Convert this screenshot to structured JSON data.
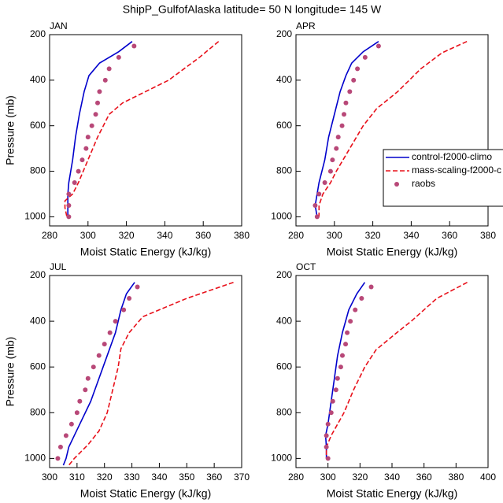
{
  "suptitle": "ShipP_GulfofAlaska  latitude= 50 N longitude= 145 W",
  "chart_data": [
    {
      "type": "line",
      "title": "JAN",
      "xlabel": "Moist Static Energy (kJ/kg)",
      "ylabel": "Pressure (mb)",
      "xlim": [
        280,
        380
      ],
      "xticks": [
        280,
        300,
        320,
        340,
        360,
        380
      ],
      "ylim": [
        1040,
        200
      ],
      "yticks": [
        200,
        400,
        600,
        800,
        1000
      ],
      "series": [
        {
          "color": "#0000cc",
          "style": "solid",
          "x": [
            323,
            316,
            306,
            300.5,
            298,
            295.5,
            293.5,
            292,
            290,
            289.5,
            289.5,
            289.5
          ],
          "y": [
            230,
            275,
            325,
            380,
            450,
            550,
            650,
            750,
            850,
            900,
            950,
            1000
          ]
        },
        {
          "color": "#e8101a",
          "style": "dashed",
          "x": [
            368,
            358,
            342,
            330,
            318,
            311,
            305,
            300,
            295,
            292,
            288,
            288,
            289
          ],
          "y": [
            230,
            300,
            400,
            450,
            500,
            550,
            650,
            750,
            850,
            900,
            930,
            960,
            1000
          ]
        },
        {
          "color": "#b84878",
          "style": "dots",
          "x": [
            324,
            316,
            311,
            309,
            306,
            305,
            304,
            302,
            300,
            299,
            297,
            295,
            293,
            290,
            290,
            290
          ],
          "y": [
            250,
            300,
            350,
            400,
            450,
            500,
            550,
            600,
            650,
            700,
            750,
            800,
            850,
            900,
            950,
            1000
          ]
        }
      ]
    },
    {
      "type": "line",
      "title": "APR",
      "xlabel": "Moist Static Energy (kJ/kg)",
      "xlim": [
        280,
        380
      ],
      "xticks": [
        280,
        300,
        320,
        340,
        360,
        380
      ],
      "ylim": [
        1040,
        200
      ],
      "yticks": [
        200,
        400,
        600,
        800,
        1000
      ],
      "legend": "right",
      "series": [
        {
          "name": "control-f2000-climo",
          "color": "#0000cc",
          "style": "solid",
          "x": [
            323,
            315,
            309,
            306,
            303,
            300,
            297,
            295,
            292,
            291,
            290,
            291
          ],
          "y": [
            230,
            275,
            325,
            380,
            450,
            550,
            650,
            750,
            850,
            900,
            950,
            1000
          ]
        },
        {
          "name": "mass-scaling-f2000-c",
          "color": "#e8101a",
          "style": "dashed",
          "x": [
            369,
            356,
            345,
            333,
            322,
            315,
            308,
            301,
            298,
            294,
            292,
            292
          ],
          "y": [
            230,
            280,
            350,
            450,
            525,
            600,
            700,
            800,
            850,
            900,
            950,
            1000
          ]
        },
        {
          "name": "raobs",
          "color": "#b84878",
          "style": "dots",
          "x": [
            323,
            316,
            312,
            310,
            308,
            306,
            305,
            304,
            302,
            301,
            299,
            298,
            295,
            292,
            290,
            291
          ],
          "y": [
            250,
            300,
            350,
            400,
            450,
            500,
            550,
            600,
            650,
            700,
            750,
            800,
            850,
            900,
            950,
            1000
          ]
        }
      ]
    },
    {
      "type": "line",
      "title": "JUL",
      "xlabel": "Moist Static Energy (kJ/kg)",
      "ylabel": "Pressure (mb)",
      "xlim": [
        300,
        370
      ],
      "xticks": [
        300,
        310,
        320,
        330,
        340,
        350,
        360,
        370
      ],
      "ylim": [
        1040,
        200
      ],
      "yticks": [
        200,
        400,
        600,
        800,
        1000
      ],
      "series": [
        {
          "color": "#0000cc",
          "style": "solid",
          "x": [
            331,
            328,
            326,
            324,
            321,
            318,
            315,
            311,
            309,
            307,
            306,
            305
          ],
          "y": [
            230,
            280,
            350,
            450,
            550,
            650,
            750,
            850,
            900,
            950,
            1000,
            1030
          ]
        },
        {
          "color": "#e8101a",
          "style": "dashed",
          "x": [
            367,
            350,
            334,
            329,
            326,
            325,
            323,
            321,
            318,
            314,
            309,
            307
          ],
          "y": [
            230,
            300,
            380,
            450,
            520,
            600,
            700,
            800,
            880,
            940,
            1000,
            1030
          ]
        },
        {
          "color": "#b84878",
          "style": "dots",
          "x": [
            332,
            329,
            327,
            324,
            322,
            320,
            318,
            316,
            314,
            313,
            311,
            310,
            308,
            306,
            304,
            303
          ],
          "y": [
            250,
            300,
            350,
            400,
            450,
            500,
            550,
            600,
            650,
            700,
            750,
            800,
            850,
            900,
            950,
            1000
          ]
        }
      ]
    },
    {
      "type": "line",
      "title": "OCT",
      "xlabel": "Moist Static Energy (kJ/kg)",
      "xlim": [
        280,
        400
      ],
      "xticks": [
        280,
        300,
        320,
        340,
        360,
        380,
        400
      ],
      "ylim": [
        1040,
        200
      ],
      "yticks": [
        200,
        400,
        600,
        800,
        1000
      ],
      "series": [
        {
          "color": "#0000cc",
          "style": "solid",
          "x": [
            323,
            318,
            313,
            309,
            306,
            304,
            302,
            300,
            298.5,
            299,
            299
          ],
          "y": [
            230,
            280,
            350,
            450,
            550,
            650,
            750,
            850,
            900,
            950,
            1000
          ]
        },
        {
          "color": "#e8101a",
          "style": "dashed",
          "x": [
            387,
            368,
            352,
            343,
            330,
            323,
            316,
            310,
            306,
            302,
            299,
            299
          ],
          "y": [
            230,
            300,
            400,
            450,
            525,
            600,
            700,
            800,
            850,
            900,
            950,
            1000
          ]
        },
        {
          "color": "#b84878",
          "style": "dots",
          "x": [
            327,
            321,
            317,
            314,
            312,
            311,
            309,
            308,
            306,
            305,
            303,
            302,
            300,
            299,
            299,
            300
          ],
          "y": [
            250,
            300,
            350,
            400,
            450,
            500,
            550,
            600,
            650,
            700,
            750,
            800,
            850,
            900,
            950,
            1000
          ]
        }
      ]
    }
  ]
}
